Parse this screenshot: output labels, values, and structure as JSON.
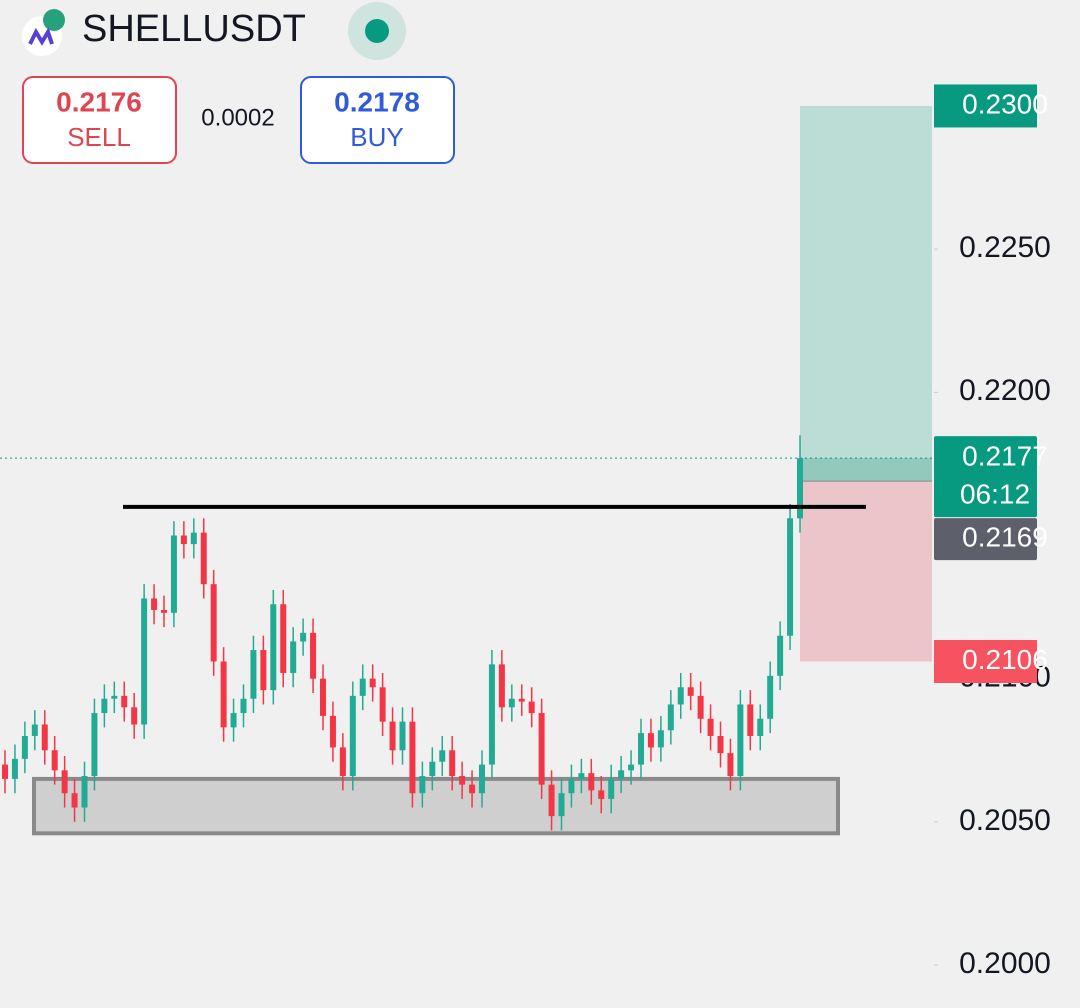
{
  "header": {
    "symbol": "SHELLUSDT"
  },
  "quote": {
    "sell": {
      "price": "0.2176",
      "label": "SELL"
    },
    "spread": "0.0002",
    "buy": {
      "price": "0.2178",
      "label": "BUY"
    }
  },
  "chart_data": {
    "type": "candlestick",
    "up_color": "#22ab94",
    "down_color": "#f23645",
    "open": [
      0.207,
      0.2065,
      0.2072,
      0.208,
      0.2084,
      0.2075,
      0.2068,
      0.206,
      0.2055,
      0.2066,
      0.2088,
      0.2093,
      0.2094,
      0.209,
      0.2084,
      0.2128,
      0.2124,
      0.2123,
      0.215,
      0.2147,
      0.2151,
      0.2133,
      0.2106,
      0.2083,
      0.2088,
      0.2093,
      0.211,
      0.2096,
      0.2126,
      0.2102,
      0.2113,
      0.2116,
      0.21,
      0.2087,
      0.2076,
      0.2066,
      0.2094,
      0.21,
      0.2097,
      0.2085,
      0.2075,
      0.2085,
      0.206,
      0.2066,
      0.2071,
      0.2075,
      0.2066,
      0.2063,
      0.206,
      0.207,
      0.2105,
      0.209,
      0.2093,
      0.2092,
      0.2088,
      0.2063,
      0.2052,
      0.206,
      0.2065,
      0.2067,
      0.2061,
      0.2058,
      0.2065,
      0.2068,
      0.207,
      0.2081,
      0.2076,
      0.2082,
      0.2091,
      0.2097,
      0.2094,
      0.2086,
      0.208,
      0.2074,
      0.2066,
      0.2091,
      0.208,
      0.2086,
      0.2101,
      0.2115,
      0.2156
    ],
    "high": [
      0.2075,
      0.2077,
      0.2085,
      0.2089,
      0.2089,
      0.208,
      0.2073,
      0.2065,
      0.2071,
      0.2093,
      0.2098,
      0.2099,
      0.2099,
      0.2095,
      0.2133,
      0.2133,
      0.2129,
      0.2155,
      0.2155,
      0.2156,
      0.2156,
      0.2138,
      0.2111,
      0.2093,
      0.2098,
      0.2115,
      0.2115,
      0.2131,
      0.2131,
      0.2118,
      0.2121,
      0.2121,
      0.2105,
      0.2092,
      0.2081,
      0.2099,
      0.2105,
      0.2105,
      0.2102,
      0.209,
      0.209,
      0.209,
      0.2071,
      0.2076,
      0.208,
      0.208,
      0.2071,
      0.2068,
      0.2075,
      0.211,
      0.211,
      0.2098,
      0.2098,
      0.2097,
      0.2093,
      0.2068,
      0.2065,
      0.207,
      0.2072,
      0.2072,
      0.2066,
      0.207,
      0.2073,
      0.2075,
      0.2086,
      0.2086,
      0.2087,
      0.2096,
      0.2102,
      0.2102,
      0.2099,
      0.2091,
      0.2085,
      0.2079,
      0.2096,
      0.2096,
      0.2091,
      0.2106,
      0.212,
      0.2161,
      0.2185
    ],
    "low": [
      0.206,
      0.206,
      0.2067,
      0.2075,
      0.207,
      0.2063,
      0.2055,
      0.205,
      0.205,
      0.2061,
      0.2083,
      0.2088,
      0.2085,
      0.2079,
      0.2079,
      0.2119,
      0.2118,
      0.2118,
      0.2142,
      0.2142,
      0.2128,
      0.2101,
      0.2078,
      0.2078,
      0.2083,
      0.2088,
      0.2091,
      0.2091,
      0.2097,
      0.2097,
      0.2108,
      0.2095,
      0.2082,
      0.2071,
      0.2061,
      0.2061,
      0.2089,
      0.2092,
      0.208,
      0.207,
      0.207,
      0.2055,
      0.2055,
      0.2061,
      0.2066,
      0.2061,
      0.2058,
      0.2055,
      0.2055,
      0.2065,
      0.2085,
      0.2085,
      0.2087,
      0.2083,
      0.2058,
      0.2047,
      0.2047,
      0.2055,
      0.206,
      0.2056,
      0.2053,
      0.2053,
      0.206,
      0.2063,
      0.2065,
      0.2071,
      0.2071,
      0.2077,
      0.2086,
      0.2089,
      0.2081,
      0.2075,
      0.2069,
      0.2061,
      0.2061,
      0.2075,
      0.2075,
      0.2081,
      0.2096,
      0.211,
      0.2151
    ],
    "close": [
      0.2065,
      0.2072,
      0.208,
      0.2084,
      0.2075,
      0.2068,
      0.206,
      0.2055,
      0.2066,
      0.2088,
      0.2093,
      0.2094,
      0.209,
      0.2084,
      0.2128,
      0.2124,
      0.2123,
      0.215,
      0.2147,
      0.2151,
      0.2133,
      0.2106,
      0.2083,
      0.2088,
      0.2093,
      0.211,
      0.2096,
      0.2126,
      0.2102,
      0.2113,
      0.2116,
      0.21,
      0.2087,
      0.2076,
      0.2066,
      0.2094,
      0.21,
      0.2097,
      0.2085,
      0.2075,
      0.2085,
      0.206,
      0.2066,
      0.2071,
      0.2075,
      0.2066,
      0.2063,
      0.206,
      0.207,
      0.2105,
      0.209,
      0.2093,
      0.2092,
      0.2088,
      0.2063,
      0.2052,
      0.206,
      0.2065,
      0.2067,
      0.2061,
      0.2058,
      0.2065,
      0.2068,
      0.207,
      0.2081,
      0.2076,
      0.2082,
      0.2091,
      0.2097,
      0.2094,
      0.2086,
      0.208,
      0.2074,
      0.2066,
      0.2091,
      0.208,
      0.2086,
      0.2101,
      0.2115,
      0.2156,
      0.2177
    ],
    "ylim": [
      0.1985,
      0.2337
    ],
    "yticks": [
      {
        "value": 0.225,
        "label": "0.2250"
      },
      {
        "value": 0.22,
        "label": "0.2200"
      },
      {
        "value": 0.21,
        "label": "0.2100"
      },
      {
        "value": 0.205,
        "label": "0.2050"
      },
      {
        "value": 0.2,
        "label": "0.2000"
      }
    ],
    "resistance_line": 0.216,
    "support_zone": [
      0.2046,
      0.2065
    ],
    "position": {
      "take_profit": {
        "value": 0.23,
        "label": "0.2300",
        "color": "#089981"
      },
      "entry": {
        "value": 0.2169,
        "label": "0.2169",
        "color": "#5d606b"
      },
      "stop_loss": {
        "value": 0.2106,
        "label": "0.2106",
        "color": "#f7525f"
      }
    },
    "last_price": {
      "value": 0.2177,
      "label": "0.2177",
      "countdown": "06:12",
      "color": "#089981"
    }
  }
}
